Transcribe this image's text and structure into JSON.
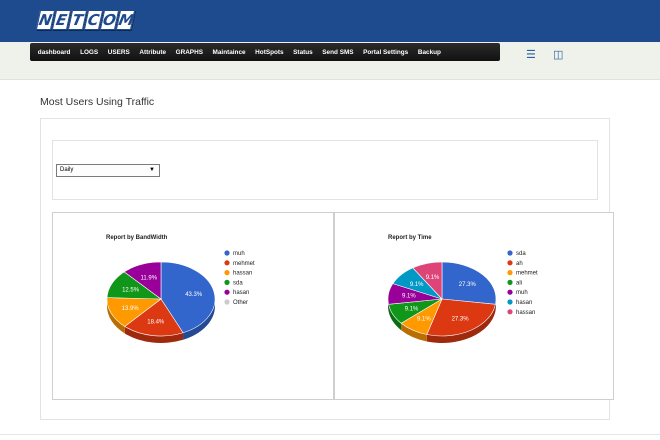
{
  "app": {
    "logo_letters": [
      "N",
      "E",
      "T",
      "C",
      "O",
      "M"
    ]
  },
  "nav": {
    "items": [
      "dashboard",
      "LOGS",
      "USERS",
      "Attribute",
      "GRAPHS",
      "Maintaince",
      "HotSpots",
      "Status",
      "Send SMS",
      "Portal Settings",
      "Backup"
    ]
  },
  "toolbar": {
    "icons": [
      "sliders-icon",
      "logout-door-icon"
    ]
  },
  "page": {
    "title": "Most Users Using Traffic"
  },
  "filter": {
    "selected": "Daily"
  },
  "colors": {
    "header": "#1e4a8e",
    "palette": [
      "#3366cc",
      "#dc3912",
      "#ff9900",
      "#109618",
      "#990099",
      "#0099c6",
      "#dd4477",
      "#cccccc"
    ]
  },
  "chart_data": [
    {
      "type": "pie",
      "title": "Report by BandWidth",
      "legend_position": "right",
      "categories": [
        "muh",
        "mehmet",
        "hassan",
        "sda",
        "hasan",
        "Other"
      ],
      "values": [
        43.3,
        18.4,
        13.9,
        12.5,
        11.9,
        0.0
      ],
      "labels": [
        "43.3%",
        "18.4%",
        "13.9%",
        "12.5%",
        "11.9%",
        ""
      ],
      "colors": [
        "#3366cc",
        "#dc3912",
        "#ff9900",
        "#109618",
        "#990099",
        "#cccccc"
      ]
    },
    {
      "type": "pie",
      "title": "Report by Time",
      "legend_position": "right",
      "categories": [
        "sda",
        "ah",
        "mehmet",
        "ali",
        "muh",
        "hasan",
        "hassan"
      ],
      "values": [
        27.3,
        27.3,
        9.1,
        9.1,
        9.1,
        9.1,
        9.1
      ],
      "labels": [
        "27.3%",
        "27.3%",
        "9.1%",
        "9.1%",
        "9.1%",
        "9.1%",
        "9.1%"
      ],
      "colors": [
        "#3366cc",
        "#dc3912",
        "#ff9900",
        "#109618",
        "#990099",
        "#0099c6",
        "#dd4477"
      ]
    }
  ]
}
